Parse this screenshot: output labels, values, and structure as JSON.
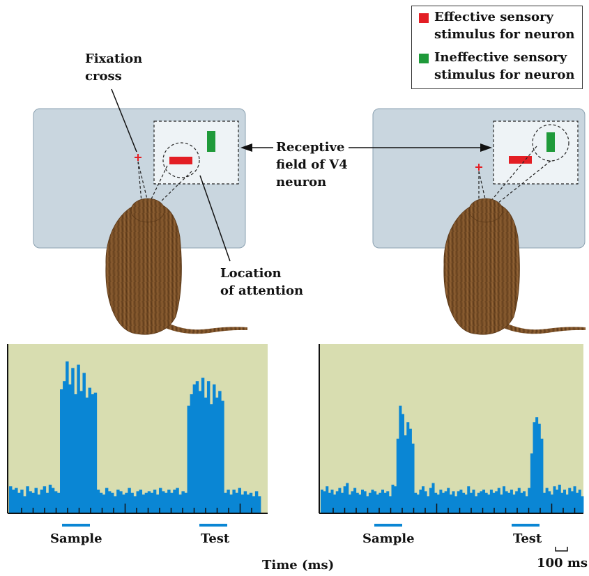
{
  "legend": {
    "effective": {
      "line1": "Effective sensory",
      "line2": "stimulus for neuron",
      "color": "#e31e24"
    },
    "ineffective": {
      "line1": "Ineffective sensory",
      "line2": "stimulus for neuron",
      "color": "#1f9a3a"
    }
  },
  "labels": {
    "fixation_line1": "Fixation",
    "fixation_line2": "cross",
    "rf_line1": "Receptive",
    "rf_line2": "field of V4",
    "rf_line3": "neuron",
    "attention_line1": "Location",
    "attention_line2": "of attention"
  },
  "histograms": {
    "sample_label": "Sample",
    "test_label": "Test",
    "time_label": "Time (ms)",
    "scale_label": "100 ms"
  },
  "colors": {
    "screen": "#c9d6df",
    "plot_bg": "#d8ddb0",
    "bar": "#0a86d4",
    "monkey": "#7a5028"
  },
  "chart_data": {
    "type": "bar",
    "x_label": "Time (ms)",
    "markers": [
      "Sample",
      "Test"
    ],
    "scale": "100 ms",
    "series": [
      {
        "values": [
          16,
          14,
          15,
          12,
          14,
          10,
          16,
          13,
          12,
          15,
          11,
          14,
          16,
          12,
          17,
          15,
          13,
          12,
          75,
          80,
          92,
          78,
          88,
          72,
          90,
          74,
          85,
          70,
          76,
          72,
          73,
          14,
          12,
          11,
          15,
          13,
          12,
          10,
          14,
          13,
          11,
          12,
          15,
          12,
          10,
          13,
          14,
          11,
          12,
          13,
          12,
          14,
          11,
          15,
          13,
          12,
          14,
          12,
          14,
          15,
          11,
          13,
          12,
          65,
          72,
          78,
          80,
          74,
          82,
          70,
          80,
          66,
          78,
          70,
          74,
          68,
          12,
          14,
          11,
          14,
          12,
          15,
          11,
          13,
          11,
          12,
          10,
          13,
          10
        ]
      },
      {
        "values": [
          14,
          13,
          16,
          12,
          14,
          11,
          13,
          15,
          12,
          16,
          18,
          11,
          13,
          15,
          12,
          11,
          14,
          13,
          10,
          12,
          14,
          13,
          11,
          12,
          14,
          12,
          13,
          10,
          17,
          16,
          45,
          65,
          60,
          47,
          55,
          51,
          42,
          12,
          11,
          14,
          16,
          13,
          10,
          15,
          18,
          12,
          11,
          14,
          12,
          13,
          15,
          11,
          13,
          10,
          13,
          14,
          12,
          11,
          16,
          12,
          14,
          10,
          12,
          13,
          14,
          12,
          11,
          14,
          12,
          13,
          15,
          11,
          16,
          13,
          12,
          14,
          11,
          13,
          15,
          12,
          13,
          10,
          15,
          36,
          55,
          58,
          54,
          45,
          12,
          15,
          13,
          11,
          16,
          14,
          17,
          12,
          14,
          11,
          15,
          13,
          16,
          12,
          14,
          10
        ]
      }
    ]
  }
}
